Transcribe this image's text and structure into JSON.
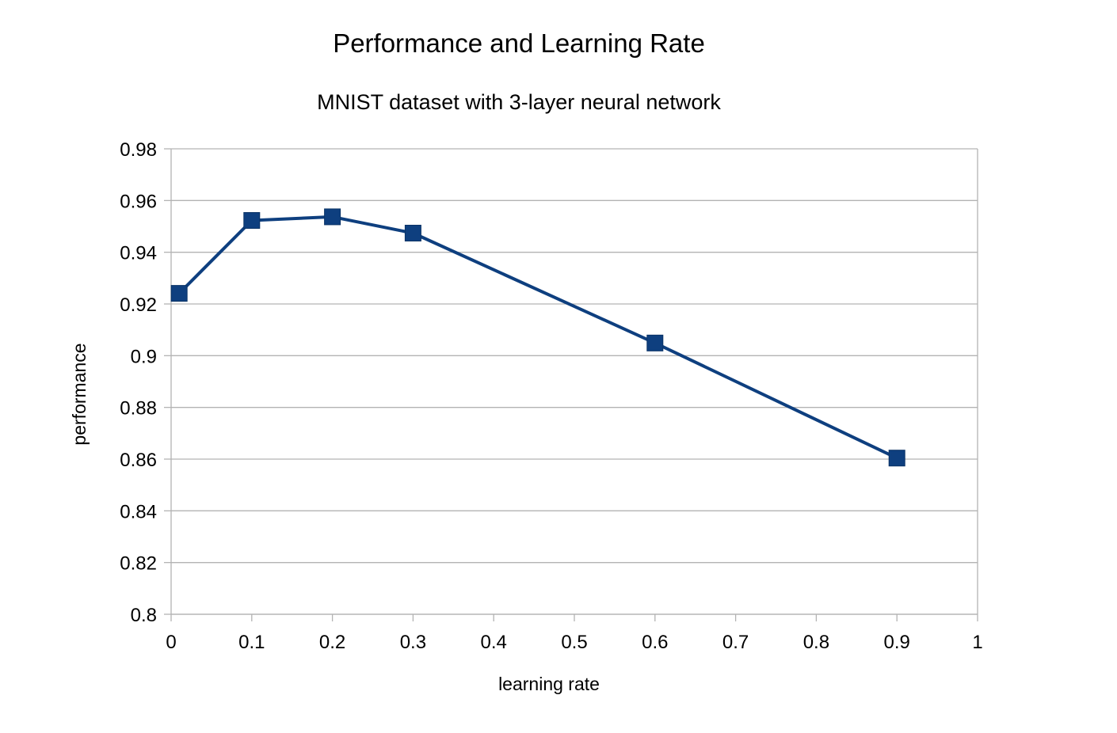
{
  "chart_data": {
    "type": "line",
    "title": "Performance and Learning Rate",
    "subtitle": "MNIST dataset with 3-layer neural network",
    "xlabel": "learning rate",
    "ylabel": "performance",
    "xlim": [
      0,
      1
    ],
    "ylim": [
      0.8,
      0.98
    ],
    "x_ticks": [
      "0",
      "0.1",
      "0.2",
      "0.3",
      "0.4",
      "0.5",
      "0.6",
      "0.7",
      "0.8",
      "0.9",
      "1"
    ],
    "y_ticks": [
      "0.8",
      "0.82",
      "0.84",
      "0.86",
      "0.88",
      "0.9",
      "0.92",
      "0.94",
      "0.96",
      "0.98"
    ],
    "grid": true,
    "marker": "square",
    "colors": {
      "series": "#0e3f7f",
      "grid": "#b3b3b3",
      "axis": "#b3b3b3"
    },
    "series": [
      {
        "x": [
          0.01,
          0.1,
          0.2,
          0.3,
          0.6,
          0.9
        ],
        "values": [
          0.9241,
          0.9523,
          0.9537,
          0.9474,
          0.9049,
          0.8604
        ]
      }
    ]
  }
}
